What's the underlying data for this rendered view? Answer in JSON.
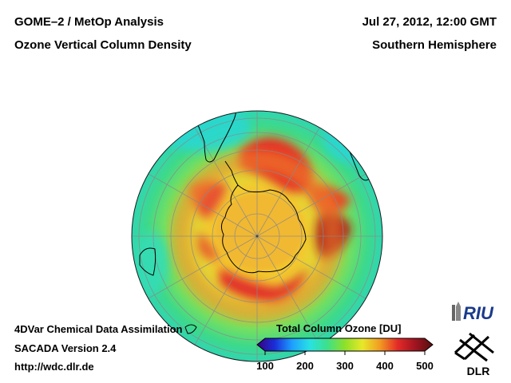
{
  "header": {
    "title_left_1": "GOME–2 / MetOp Analysis",
    "title_left_2": "Ozone Vertical Column Density",
    "title_right_1": "Jul 27, 2012, 12:00 GMT",
    "title_right_2": "Southern Hemisphere"
  },
  "footer": {
    "line1": "4DVar Chemical Data Assimilation",
    "line2": "SACADA Version 2.4",
    "line3": "http://wdc.dlr.de"
  },
  "colorbar": {
    "title": "Total Column Ozone [DU]",
    "min": 100,
    "max": 500,
    "ticks": [
      {
        "value": 100,
        "label": "100"
      },
      {
        "value": 200,
        "label": "200"
      },
      {
        "value": 300,
        "label": "300"
      },
      {
        "value": 400,
        "label": "400"
      },
      {
        "value": 500,
        "label": "500"
      }
    ],
    "colors": [
      "#3a0080",
      "#1a2dd8",
      "#1ea0ff",
      "#28e2e2",
      "#3ee08a",
      "#8ee02a",
      "#e8e82a",
      "#f29a22",
      "#e42a28",
      "#a01420",
      "#541010"
    ]
  },
  "logos": {
    "riu": "RIU",
    "dlr": "DLR"
  },
  "map": {
    "projection": "orthographic, south pole centred",
    "ocean_color": "#3ed98a",
    "land_outline_color": "#000000",
    "graticule_color": "#8a8a8a",
    "ozone_features": [
      {
        "name": "ring-sector-south-atlantic",
        "level_du": 400
      },
      {
        "name": "ring-sector-indian-ocean",
        "level_du": 450
      },
      {
        "name": "ring-sector-pacific",
        "level_du": 420
      },
      {
        "name": "ring-sector-east",
        "level_du": 390
      },
      {
        "name": "polar-vortex-inner",
        "level_du": 300
      },
      {
        "name": "tropics-low",
        "level_du": 250
      }
    ]
  }
}
